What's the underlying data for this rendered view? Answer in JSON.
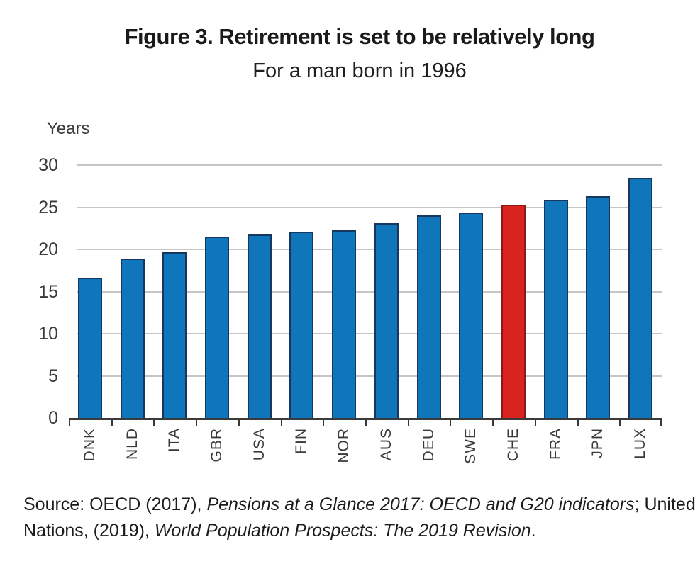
{
  "figure": {
    "title": "Figure 3. Retirement is set to be relatively long",
    "subtitle": "For a man born in 1996"
  },
  "chart_data": {
    "type": "bar",
    "title": "Figure 3. Retirement is set to be relatively long",
    "subtitle": "For a man born in 1996",
    "xlabel": "",
    "ylabel": "Years",
    "ylim": [
      0,
      30
    ],
    "yticks": [
      0,
      5,
      10,
      15,
      20,
      25,
      30
    ],
    "grid": true,
    "legend": "none",
    "categories": [
      "DNK",
      "NLD",
      "ITA",
      "GBR",
      "USA",
      "FIN",
      "NOR",
      "AUS",
      "DEU",
      "SWE",
      "CHE",
      "FRA",
      "JPN",
      "LUX"
    ],
    "values": [
      16.6,
      18.9,
      19.7,
      21.5,
      21.8,
      22.1,
      22.3,
      23.1,
      24.0,
      24.4,
      25.3,
      25.9,
      26.3,
      28.5
    ],
    "highlight_category": "CHE",
    "colors": {
      "bar_fill": "#1076bc",
      "bar_edge": "#17375e",
      "highlight_fill": "#d9231f",
      "highlight_edge": "#8c1a15",
      "gridline": "#c6c6c6",
      "axis": "#3a3a3a",
      "labels": "#3a3a3a"
    }
  },
  "source": {
    "lines": [
      [
        {
          "text": "Source: OECD (2017), ",
          "italic": false
        },
        {
          "text": "Pensions at a Glance 2017: OECD and G20 indicators",
          "italic": true
        },
        {
          "text": "; United",
          "italic": false
        }
      ],
      [
        {
          "text": "Nations, (2019), ",
          "italic": false
        },
        {
          "text": "World Population Prospects: The 2019 Revision",
          "italic": true
        },
        {
          "text": ".",
          "italic": false
        }
      ]
    ]
  }
}
